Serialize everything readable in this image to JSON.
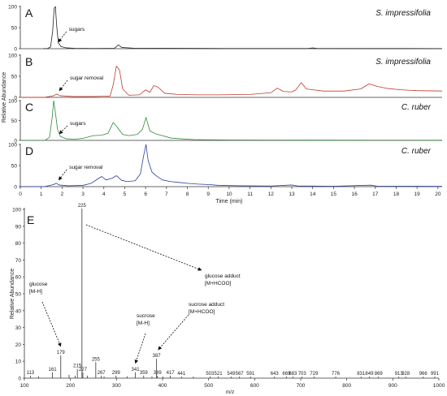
{
  "chart_data": [
    {
      "type": "line",
      "panel_letter": "A",
      "species": "S. impressifolia",
      "color": "#222222",
      "xlim": [
        0,
        20.2
      ],
      "ylim": [
        0,
        100
      ],
      "yticks": [
        0,
        50,
        100
      ],
      "peaks": [
        [
          1.1,
          0
        ],
        [
          1.3,
          0.5
        ],
        [
          1.45,
          4
        ],
        [
          1.55,
          42
        ],
        [
          1.62,
          95
        ],
        [
          1.68,
          100
        ],
        [
          1.74,
          55
        ],
        [
          1.82,
          14
        ],
        [
          1.95,
          5
        ],
        [
          2.2,
          2
        ],
        [
          2.6,
          1
        ],
        [
          3.5,
          0.5
        ],
        [
          4.5,
          0.8
        ],
        [
          4.7,
          9
        ],
        [
          4.85,
          3
        ],
        [
          5.5,
          1
        ],
        [
          7,
          0.8
        ],
        [
          10,
          0.5
        ],
        [
          13.8,
          0.6
        ],
        [
          14.0,
          2
        ],
        [
          14.2,
          0.6
        ],
        [
          17,
          0.4
        ],
        [
          20.2,
          0.3
        ]
      ],
      "annotations": [
        {
          "text": "sugars",
          "x": 1.7
        }
      ]
    },
    {
      "type": "line",
      "panel_letter": "B",
      "species": "S. impressifolia",
      "color": "#c0392b",
      "xlim": [
        0,
        20.2
      ],
      "ylim": [
        0,
        100
      ],
      "yticks": [
        0,
        50,
        100
      ],
      "peaks": [
        [
          0,
          0
        ],
        [
          1.2,
          0.5
        ],
        [
          1.6,
          4
        ],
        [
          1.75,
          8
        ],
        [
          1.9,
          4
        ],
        [
          2.5,
          2
        ],
        [
          3.5,
          2
        ],
        [
          4.3,
          3
        ],
        [
          4.45,
          30
        ],
        [
          4.6,
          74
        ],
        [
          4.75,
          65
        ],
        [
          4.9,
          20
        ],
        [
          5.2,
          5
        ],
        [
          5.7,
          6
        ],
        [
          6.0,
          18
        ],
        [
          6.2,
          12
        ],
        [
          6.4,
          28
        ],
        [
          6.6,
          24
        ],
        [
          6.9,
          10
        ],
        [
          7.5,
          7
        ],
        [
          8.5,
          6
        ],
        [
          9.5,
          6
        ],
        [
          11,
          7
        ],
        [
          12.0,
          11
        ],
        [
          12.3,
          22
        ],
        [
          12.6,
          14
        ],
        [
          13.0,
          13
        ],
        [
          13.2,
          18
        ],
        [
          13.45,
          35
        ],
        [
          13.7,
          20
        ],
        [
          14.5,
          15
        ],
        [
          15.5,
          15
        ],
        [
          16.3,
          20
        ],
        [
          16.7,
          32
        ],
        [
          17.1,
          26
        ],
        [
          17.6,
          21
        ],
        [
          18.2,
          18
        ],
        [
          19,
          16
        ],
        [
          20.2,
          15
        ]
      ],
      "annotations": [
        {
          "text": "sugar removal",
          "x": 1.75
        }
      ]
    },
    {
      "type": "line",
      "panel_letter": "C",
      "species": "C. ruber",
      "color": "#2e8b3a",
      "xlim": [
        0,
        20.2
      ],
      "ylim": [
        0,
        100
      ],
      "yticks": [
        0,
        50,
        100
      ],
      "peaks": [
        [
          0,
          0
        ],
        [
          1.2,
          0.5
        ],
        [
          1.4,
          8
        ],
        [
          1.52,
          55
        ],
        [
          1.6,
          100
        ],
        [
          1.68,
          70
        ],
        [
          1.78,
          28
        ],
        [
          1.92,
          10
        ],
        [
          2.2,
          4
        ],
        [
          2.6,
          3
        ],
        [
          3.0,
          5
        ],
        [
          3.5,
          12
        ],
        [
          3.9,
          13
        ],
        [
          4.2,
          18
        ],
        [
          4.45,
          45
        ],
        [
          4.6,
          36
        ],
        [
          4.9,
          15
        ],
        [
          5.2,
          12
        ],
        [
          5.6,
          15
        ],
        [
          5.85,
          28
        ],
        [
          6.02,
          58
        ],
        [
          6.2,
          24
        ],
        [
          6.5,
          16
        ],
        [
          6.8,
          12
        ],
        [
          7.2,
          6
        ],
        [
          7.7,
          4
        ],
        [
          8.3,
          2
        ],
        [
          9,
          1.5
        ],
        [
          10,
          1
        ],
        [
          12,
          0.8
        ],
        [
          14,
          0.6
        ],
        [
          17,
          0.5
        ],
        [
          20.2,
          0.4
        ]
      ],
      "annotations": [
        {
          "text": "sugars",
          "x": 1.75
        }
      ]
    },
    {
      "type": "line",
      "panel_letter": "D",
      "species": "C. ruber",
      "color": "#2c3e9a",
      "xlim": [
        0,
        20.2
      ],
      "ylim": [
        0,
        100
      ],
      "yticks": [
        0,
        50,
        100
      ],
      "peaks": [
        [
          0,
          0
        ],
        [
          1.2,
          0.5
        ],
        [
          1.6,
          5
        ],
        [
          1.72,
          8
        ],
        [
          1.85,
          4
        ],
        [
          2.3,
          2
        ],
        [
          3.0,
          3
        ],
        [
          3.4,
          8
        ],
        [
          3.7,
          18
        ],
        [
          3.9,
          24
        ],
        [
          4.1,
          16
        ],
        [
          4.4,
          20
        ],
        [
          4.6,
          26
        ],
        [
          4.85,
          15
        ],
        [
          5.1,
          12
        ],
        [
          5.5,
          14
        ],
        [
          5.75,
          30
        ],
        [
          5.9,
          72
        ],
        [
          6.02,
          100
        ],
        [
          6.12,
          62
        ],
        [
          6.3,
          35
        ],
        [
          6.5,
          26
        ],
        [
          6.8,
          16
        ],
        [
          7.2,
          12
        ],
        [
          7.6,
          10
        ],
        [
          8.0,
          8
        ],
        [
          8.5,
          6
        ],
        [
          9.0,
          5
        ],
        [
          9.5,
          3
        ],
        [
          10.5,
          2
        ],
        [
          12,
          1.5
        ],
        [
          13.0,
          4
        ],
        [
          13.3,
          1.5
        ],
        [
          15,
          1
        ],
        [
          16.8,
          3.5
        ],
        [
          17.1,
          1
        ],
        [
          19,
          0.8
        ],
        [
          20.2,
          0.6
        ]
      ],
      "annotations": [
        {
          "text": "sugar removal",
          "x": 1.72
        }
      ]
    },
    {
      "type": "bar",
      "panel_letter": "E",
      "ylabel": "Relative Abundance",
      "xlabel": "m/z",
      "xlim": [
        100,
        1000
      ],
      "ylim": [
        0,
        100
      ],
      "xticks": [
        100,
        200,
        300,
        400,
        500,
        600,
        700,
        800,
        900,
        1000
      ],
      "yticks": [
        0,
        10,
        20,
        30,
        40,
        50,
        60,
        70,
        80,
        90,
        100
      ],
      "labeled_peaks": [
        {
          "mz": 113,
          "label": "113",
          "intensity": 1
        },
        {
          "mz": 161,
          "label": "161",
          "intensity": 3
        },
        {
          "mz": 179,
          "label": "179",
          "intensity": 13
        },
        {
          "mz": 215,
          "label": "215",
          "intensity": 5
        },
        {
          "mz": 225,
          "label": "225",
          "intensity": 100
        },
        {
          "mz": 227,
          "label": "227",
          "intensity": 3
        },
        {
          "mz": 255,
          "label": "255",
          "intensity": 9
        },
        {
          "mz": 267,
          "label": "267",
          "intensity": 1
        },
        {
          "mz": 299,
          "label": "299",
          "intensity": 1
        },
        {
          "mz": 341,
          "label": "341",
          "intensity": 3
        },
        {
          "mz": 359,
          "label": "359",
          "intensity": 1
        },
        {
          "mz": 387,
          "label": "387",
          "intensity": 11
        },
        {
          "mz": 389,
          "label": "389",
          "intensity": 1
        },
        {
          "mz": 417,
          "label": "417",
          "intensity": 1
        },
        {
          "mz": 441,
          "label": "441",
          "intensity": 0.5
        },
        {
          "mz": 503,
          "label": "503",
          "intensity": 0.5
        },
        {
          "mz": 521,
          "label": "521",
          "intensity": 0.5
        },
        {
          "mz": 549,
          "label": "549",
          "intensity": 0.4
        },
        {
          "mz": 567,
          "label": "567",
          "intensity": 0.4
        },
        {
          "mz": 591,
          "label": "591",
          "intensity": 0.4
        },
        {
          "mz": 643,
          "label": "643",
          "intensity": 0.4
        },
        {
          "mz": 669,
          "label": "669",
          "intensity": 0.4
        },
        {
          "mz": 683,
          "label": "683",
          "intensity": 0.4
        },
        {
          "mz": 703,
          "label": "703",
          "intensity": 0.4
        },
        {
          "mz": 729,
          "label": "729",
          "intensity": 0.4
        },
        {
          "mz": 776,
          "label": "776",
          "intensity": 0.4
        },
        {
          "mz": 831,
          "label": "831",
          "intensity": 0.4
        },
        {
          "mz": 849,
          "label": "849",
          "intensity": 0.4
        },
        {
          "mz": 869,
          "label": "869",
          "intensity": 0.4
        },
        {
          "mz": 913,
          "label": "913",
          "intensity": 0.4
        },
        {
          "mz": 928,
          "label": "928",
          "intensity": 0.4
        },
        {
          "mz": 966,
          "label": "966",
          "intensity": 0.4
        },
        {
          "mz": 991,
          "label": "991",
          "intensity": 0.4
        }
      ],
      "minor_peaks": [
        {
          "mz": 131,
          "intensity": 0.6
        },
        {
          "mz": 197,
          "intensity": 1.5
        },
        {
          "mz": 210,
          "intensity": 1
        },
        {
          "mz": 237,
          "intensity": 1
        },
        {
          "mz": 273,
          "intensity": 0.6
        },
        {
          "mz": 323,
          "intensity": 0.6
        },
        {
          "mz": 377,
          "intensity": 0.6
        },
        {
          "mz": 401,
          "intensity": 0.5
        },
        {
          "mz": 467,
          "intensity": 0.4
        }
      ],
      "annotations": [
        {
          "line1": "glucose",
          "line2": "[M-H]",
          "target_mz": 179
        },
        {
          "line1": "glucose adduct",
          "line2": "[M+HCOO]",
          "target_mz": 225
        },
        {
          "line1": "sucrose",
          "line2": "[M-H]",
          "target_mz": 341
        },
        {
          "line1": "sucrose adduct",
          "line2": "[M+HCOO]",
          "target_mz": 387
        }
      ]
    }
  ],
  "chromatogram_axes": {
    "ylabel": "Relative Abundance",
    "xlabel": "Time (min)",
    "xticks": [
      0,
      1,
      2,
      3,
      4,
      5,
      6,
      7,
      8,
      9,
      10,
      11,
      12,
      13,
      14,
      15,
      16,
      17,
      18,
      19,
      20
    ]
  }
}
